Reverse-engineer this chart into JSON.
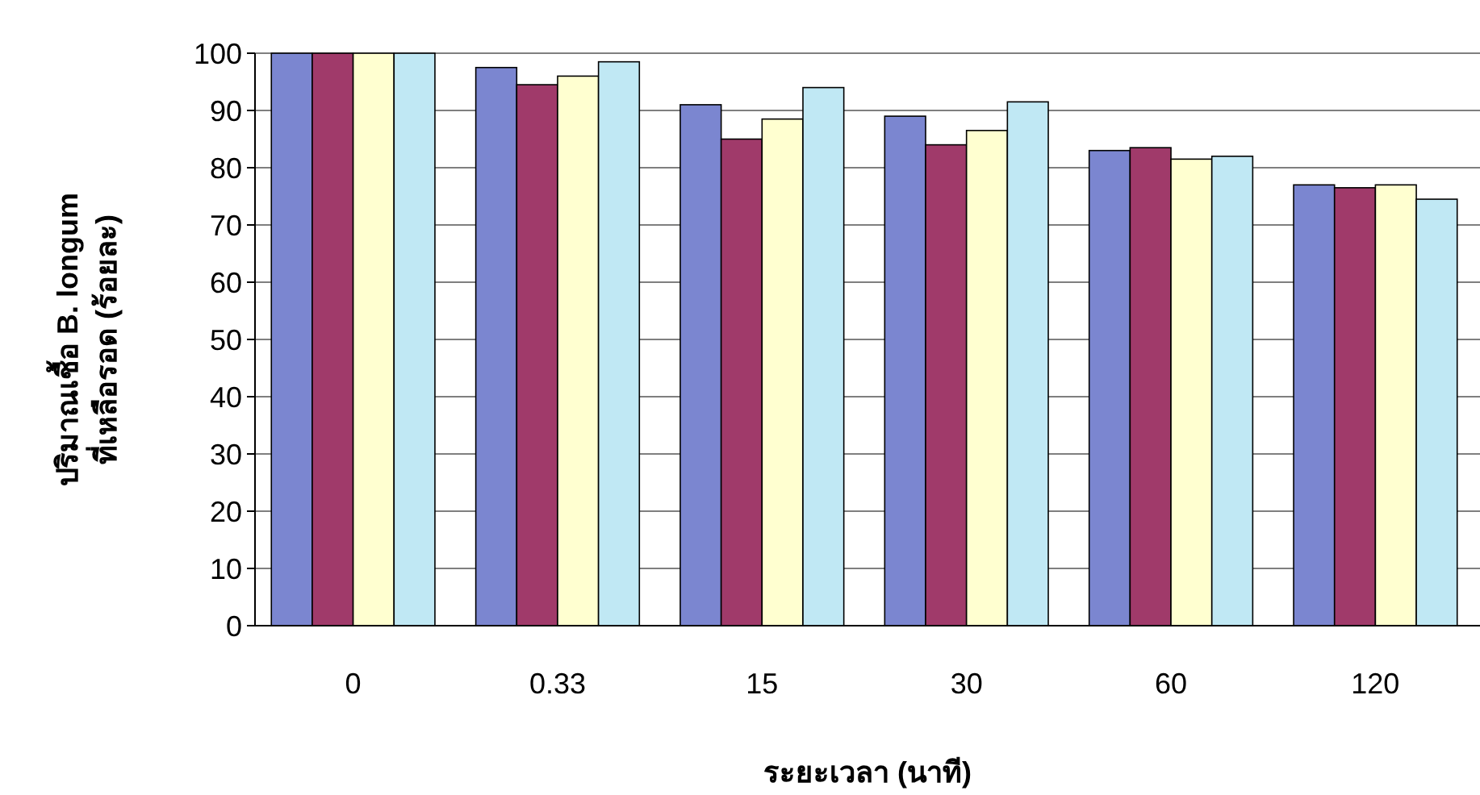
{
  "chart_data": {
    "type": "bar",
    "xlabel": "ระยะเวลา (นาที)",
    "ylabel": "ปริมาณเชื้อ B. longum ที่เหลือรอด (ร้อยละ)",
    "categories": [
      "0",
      "0.33",
      "15",
      "30",
      "60",
      "120"
    ],
    "series": [
      {
        "color": "#7b86d0",
        "values": [
          100,
          97.5,
          91,
          89,
          83,
          77
        ]
      },
      {
        "color": "#a03a6a",
        "values": [
          100,
          94.5,
          85,
          84,
          83.5,
          76.5
        ]
      },
      {
        "color": "#ffffd0",
        "values": [
          100,
          96,
          88.5,
          86.5,
          81.5,
          77
        ]
      },
      {
        "color": "#c0e8f4",
        "values": [
          100,
          98.5,
          94,
          91.5,
          82,
          74.5
        ]
      }
    ],
    "ylim": [
      0,
      100
    ],
    "yticks": [
      0,
      10,
      20,
      30,
      40,
      50,
      60,
      70,
      80,
      90,
      100
    ],
    "grid": "y"
  }
}
